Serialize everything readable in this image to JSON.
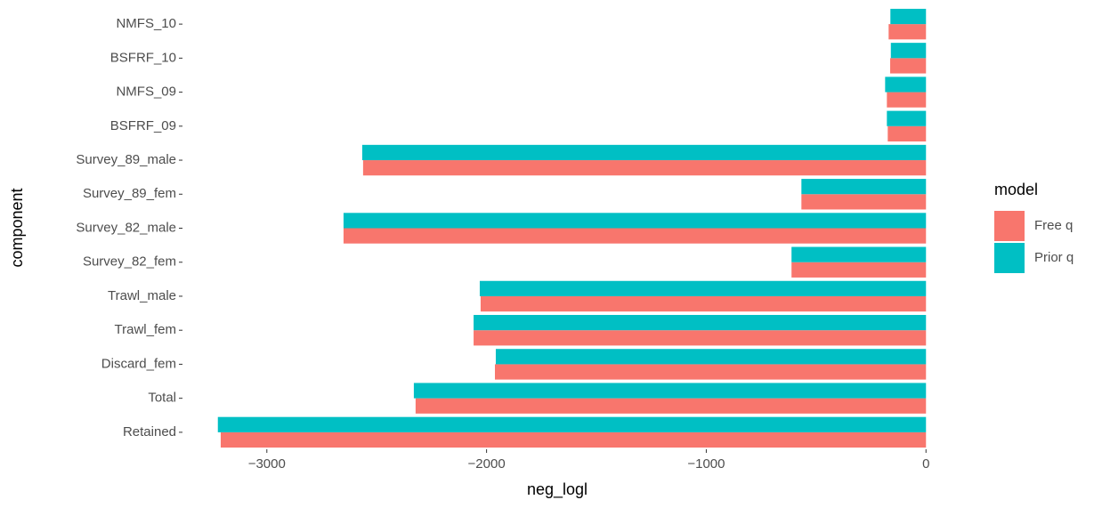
{
  "chart_data": {
    "type": "hbar",
    "x_label": "neg_logl",
    "y_label": "component",
    "legend_title": "model",
    "categories": [
      "NMFS_10",
      "BSFRF_10",
      "NMFS_09",
      "BSFRF_09",
      "Survey_89_male",
      "Survey_89_fem",
      "Survey_82_male",
      "Survey_82_fem",
      "Trawl_male",
      "Trawl_fem",
      "Discard_fem",
      "Total",
      "Retained"
    ],
    "series": [
      {
        "name": "Free q",
        "color": "#F8766D",
        "values": [
          -170,
          -163,
          -178,
          -174,
          -2562,
          -567,
          -2651,
          -612,
          -2027,
          -2059,
          -1962,
          -2323,
          -3210
        ]
      },
      {
        "name": "Prior q",
        "color": "#00BFC4",
        "values": [
          -162,
          -160,
          -186,
          -178,
          -2566,
          -567,
          -2651,
          -612,
          -2031,
          -2059,
          -1958,
          -2331,
          -3223
        ]
      }
    ],
    "xlim": [
      -3384,
      161
    ],
    "xticks": [
      {
        "value": -3000,
        "label": "−3000"
      },
      {
        "value": -2000,
        "label": "−2000"
      },
      {
        "value": -1000,
        "label": "−1000"
      },
      0
    ]
  }
}
